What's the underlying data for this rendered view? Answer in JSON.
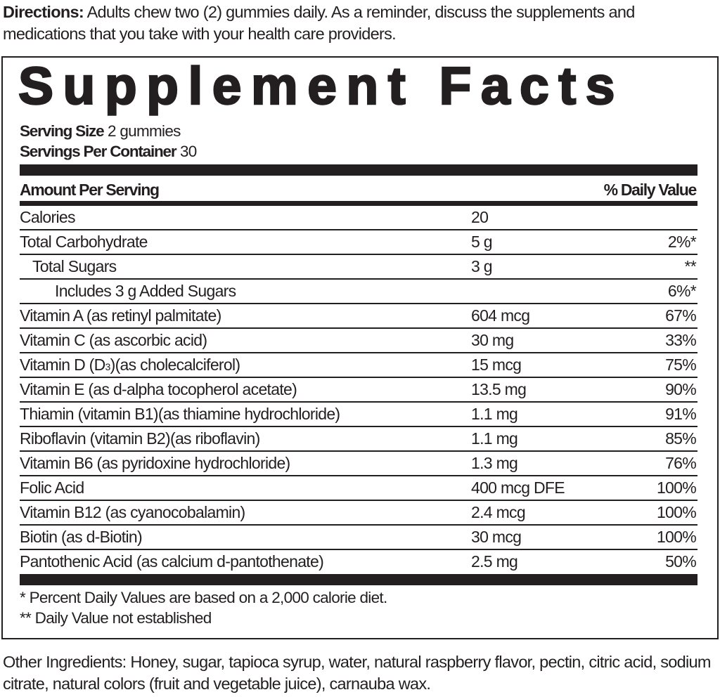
{
  "directions": {
    "label": "Directions:",
    "text": " Adults chew two (2) gummies daily. As a reminder, discuss the supplements and medications that you take with your health care providers."
  },
  "label": {
    "title": "Supplement Facts",
    "serving_size_label": "Serving Size",
    "serving_size_value": " 2 gummies",
    "servings_per_container_label": "Servings Per Container",
    "servings_per_container_value": " 30",
    "header_amount": "Amount Per Serving",
    "header_dv": "% Daily Value",
    "rows": [
      {
        "name": "Calories",
        "amount": "20",
        "dv": "",
        "indent": 0
      },
      {
        "name": "Total Carbohydrate",
        "amount": "5 g",
        "dv": "2%*",
        "indent": 0
      },
      {
        "name": "Total Sugars",
        "amount": "3 g",
        "dv": "**",
        "indent": 1
      },
      {
        "name": "Includes 3 g Added Sugars",
        "amount": "",
        "dv": "6%*",
        "indent": 2
      },
      {
        "name": "Vitamin A (as retinyl palmitate)",
        "amount": "604 mcg",
        "dv": "67%",
        "indent": 0
      },
      {
        "name": "Vitamin C (as ascorbic acid)",
        "amount": "30 mg",
        "dv": "33%",
        "indent": 0
      },
      {
        "name": "Vitamin D (D",
        "sub": "3",
        "name_after": ")(as cholecalciferol)",
        "amount": "15 mcg",
        "dv": "75%",
        "indent": 0
      },
      {
        "name": "Vitamin E (as d-alpha tocopherol acetate)",
        "amount": "13.5 mg",
        "dv": "90%",
        "indent": 0
      },
      {
        "name": "Thiamin (vitamin B1)(as thiamine hydrochloride)",
        "amount": "1.1 mg",
        "dv": "91%",
        "indent": 0
      },
      {
        "name": "Riboflavin (vitamin B2)(as riboflavin)",
        "amount": "1.1 mg",
        "dv": "85%",
        "indent": 0
      },
      {
        "name": "Vitamin B6 (as pyridoxine hydrochloride)",
        "amount": "1.3 mg",
        "dv": "76%",
        "indent": 0
      },
      {
        "name": "Folic Acid",
        "amount": "400 mcg DFE",
        "dv": "100%",
        "indent": 0
      },
      {
        "name": "Vitamin B12 (as cyanocobalamin)",
        "amount": "2.4 mcg",
        "dv": "100%",
        "indent": 0
      },
      {
        "name": "Biotin (as d-Biotin)",
        "amount": "30 mcg",
        "dv": "100%",
        "indent": 0
      },
      {
        "name": "Pantothenic Acid (as calcium d-pantothenate)",
        "amount": "2.5 mg",
        "dv": "50%",
        "indent": 0
      }
    ],
    "footnote_1": "* Percent Daily Values are based on a 2,000 calorie diet.",
    "footnote_2": "** Daily Value not established"
  },
  "other_ingredients": "Other Ingredients: Honey, sugar, tapioca syrup, water, natural raspberry flavor, pectin, citric acid, sodium citrate, natural colors (fruit and vegetable juice), carnauba wax."
}
